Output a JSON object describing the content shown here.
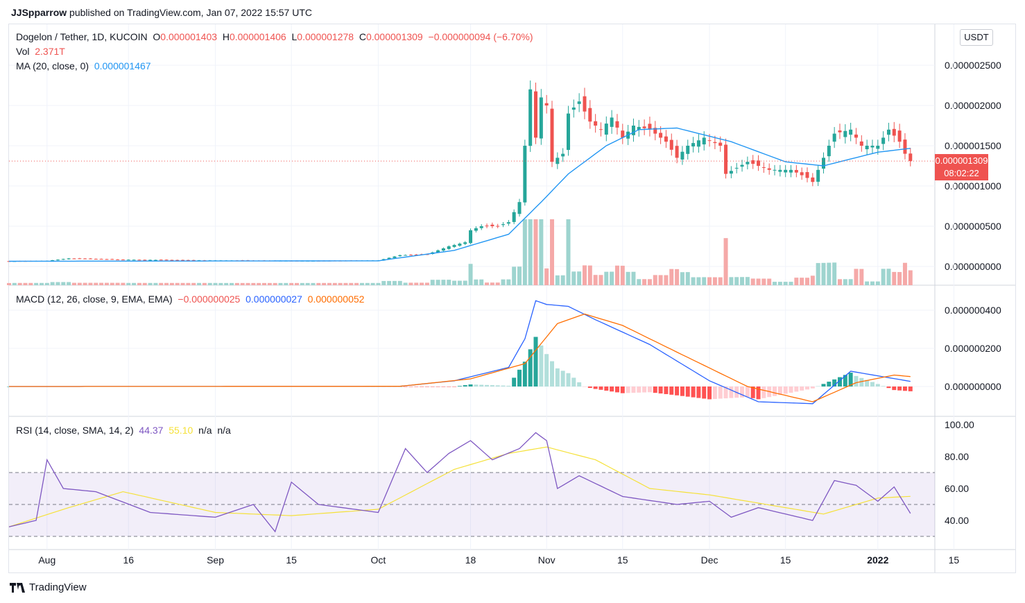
{
  "header": {
    "author": "JJSpparrow",
    "published_text": "published on TradingView.com, Jan 07, 2022 15:57 UTC"
  },
  "symbol": {
    "name": "Dogelon / Tether, 1D, KUCOIN",
    "o_label": "O",
    "o": "0.000001403",
    "h_label": "H",
    "h": "0.000001406",
    "l_label": "L",
    "l": "0.000001278",
    "c_label": "C",
    "c": "0.000001309",
    "change": "−0.000000094 (−6.70%)"
  },
  "vol": {
    "label": "Vol",
    "value": "2.371T"
  },
  "ma": {
    "label": "MA (20, close, 0)",
    "value": "0.000001467"
  },
  "macd": {
    "label": "MACD (12, 26, close, 9, EMA, EMA)",
    "hist": "−0.000000025",
    "macd": "0.000000027",
    "signal": "0.000000052"
  },
  "rsi": {
    "label": "RSI (14, close, SMA, 14, 2)",
    "rsi": "44.37",
    "ma": "55.10",
    "na1": "n/a",
    "na2": "n/a"
  },
  "currency_button": "USDT",
  "last_price": {
    "value": "0.000001309",
    "countdown": "08:02:22"
  },
  "footer": {
    "brand": "TradingView"
  },
  "colors": {
    "up": "#26a69a",
    "down": "#ef5350",
    "ma": "#2196f3",
    "macd": "#2962ff",
    "signal": "#ff6d00",
    "rsi": "#7e57c2",
    "rsi_ma": "#f5e138",
    "vol_up": "#9ed4cf",
    "vol_down": "#f5a9a8"
  },
  "chart_data": [
    {
      "type": "candlestick",
      "title": "Dogelon / Tether, 1D, KUCOIN",
      "y_ticks": [
        "0.000002500",
        "0.000002000",
        "0.000001500",
        "0.000001000",
        "0.000000500",
        "0.000000000"
      ],
      "y_tick_values": [
        2.5e-06,
        2e-06,
        1.5e-06,
        1e-06,
        5e-07,
        0
      ],
      "x_ticks": [
        "Aug",
        "16",
        "Sep",
        "15",
        "Oct",
        "18",
        "Nov",
        "15",
        "Dec",
        "15",
        "2022",
        "15"
      ],
      "x_tick_dates": [
        "2021-08-01",
        "2021-08-16",
        "2021-09-01",
        "2021-09-15",
        "2021-10-01",
        "2021-10-18",
        "2021-11-01",
        "2021-11-15",
        "2021-12-01",
        "2021-12-15",
        "2022-01-01",
        "2022-01-15"
      ],
      "date_range": [
        "2021-07-25",
        "2022-01-07"
      ],
      "close_keypoints": [
        [
          "2021-07-25",
          6.5e-08
        ],
        [
          "2021-08-01",
          7e-08
        ],
        [
          "2021-08-05",
          1e-07
        ],
        [
          "2021-08-15",
          8.5e-08
        ],
        [
          "2021-09-01",
          7.5e-08
        ],
        [
          "2021-09-20",
          7e-08
        ],
        [
          "2021-10-01",
          7.5e-08
        ],
        [
          "2021-10-05",
          1.4e-07
        ],
        [
          "2021-10-10",
          1.5e-07
        ],
        [
          "2021-10-14",
          2.5e-07
        ],
        [
          "2021-10-17",
          3e-07
        ],
        [
          "2021-10-18",
          4.5e-07
        ],
        [
          "2021-10-20",
          5e-07
        ],
        [
          "2021-10-23",
          5e-07
        ],
        [
          "2021-10-25",
          5.5e-07
        ],
        [
          "2021-10-27",
          8e-07
        ],
        [
          "2021-10-28",
          1.5e-06
        ],
        [
          "2021-10-29",
          2.2e-06
        ],
        [
          "2021-10-30",
          1.6e-06
        ],
        [
          "2021-10-31",
          2.1e-06
        ],
        [
          "2021-11-01",
          2e-06
        ],
        [
          "2021-11-02",
          1.3e-06
        ],
        [
          "2021-11-04",
          1.4e-06
        ],
        [
          "2021-11-05",
          1.9e-06
        ],
        [
          "2021-11-07",
          2.05e-06
        ],
        [
          "2021-11-09",
          1.8e-06
        ],
        [
          "2021-11-11",
          1.7e-06
        ],
        [
          "2021-11-13",
          1.85e-06
        ],
        [
          "2021-11-15",
          1.6e-06
        ],
        [
          "2021-11-17",
          1.75e-06
        ],
        [
          "2021-11-20",
          1.7e-06
        ],
        [
          "2021-11-23",
          1.55e-06
        ],
        [
          "2021-11-25",
          1.35e-06
        ],
        [
          "2021-11-27",
          1.5e-06
        ],
        [
          "2021-11-30",
          1.6e-06
        ],
        [
          "2021-12-03",
          1.5e-06
        ],
        [
          "2021-12-04",
          1.15e-06
        ],
        [
          "2021-12-08",
          1.3e-06
        ],
        [
          "2021-12-12",
          1.2e-06
        ],
        [
          "2021-12-16",
          1.2e-06
        ],
        [
          "2021-12-19",
          1.1e-06
        ],
        [
          "2021-12-20",
          1.05e-06
        ],
        [
          "2021-12-22",
          1.35e-06
        ],
        [
          "2021-12-24",
          1.65e-06
        ],
        [
          "2021-12-27",
          1.7e-06
        ],
        [
          "2021-12-29",
          1.5e-06
        ],
        [
          "2022-01-01",
          1.5e-06
        ],
        [
          "2022-01-03",
          1.7e-06
        ],
        [
          "2022-01-05",
          1.55e-06
        ],
        [
          "2022-01-06",
          1.4e-06
        ],
        [
          "2022-01-07",
          1.309e-06
        ]
      ],
      "ma20_keypoints": [
        [
          "2021-07-25",
          6.5e-08
        ],
        [
          "2021-10-01",
          7e-08
        ],
        [
          "2021-10-15",
          2e-07
        ],
        [
          "2021-10-25",
          4e-07
        ],
        [
          "2021-10-31",
          8e-07
        ],
        [
          "2021-11-05",
          1.15e-06
        ],
        [
          "2021-11-12",
          1.5e-06
        ],
        [
          "2021-11-18",
          1.7e-06
        ],
        [
          "2021-11-25",
          1.72e-06
        ],
        [
          "2021-12-05",
          1.55e-06
        ],
        [
          "2021-12-15",
          1.3e-06
        ],
        [
          "2021-12-22",
          1.25e-06
        ],
        [
          "2022-01-01",
          1.42e-06
        ],
        [
          "2022-01-07",
          1.467e-06
        ]
      ],
      "volume_note": "Volume bars shown below price, spike near Oct 29"
    },
    {
      "type": "line",
      "title": "MACD (12, 26, close, 9, EMA, EMA)",
      "y_ticks": [
        "0.000000400",
        "0.000000200",
        "0.000000000"
      ],
      "y_tick_values": [
        4e-07,
        2e-07,
        0
      ],
      "series": [
        {
          "name": "MACD",
          "keypoints": [
            [
              "2021-07-25",
              0
            ],
            [
              "2021-10-05",
              1e-09
            ],
            [
              "2021-10-15",
              3e-08
            ],
            [
              "2021-10-25",
              1e-07
            ],
            [
              "2021-10-28",
              2.5e-07
            ],
            [
              "2021-10-30",
              4.5e-07
            ],
            [
              "2021-11-01",
              4.3e-07
            ],
            [
              "2021-11-05",
              4.2e-07
            ],
            [
              "2021-11-10",
              3.5e-07
            ],
            [
              "2021-11-20",
              2.2e-07
            ],
            [
              "2021-12-01",
              3e-08
            ],
            [
              "2021-12-10",
              -8e-08
            ],
            [
              "2021-12-20",
              -9e-08
            ],
            [
              "2021-12-27",
              8e-08
            ],
            [
              "2022-01-07",
              2.7e-08
            ]
          ]
        },
        {
          "name": "Signal",
          "keypoints": [
            [
              "2021-07-25",
              0
            ],
            [
              "2021-10-05",
              1e-09
            ],
            [
              "2021-10-18",
              4e-08
            ],
            [
              "2021-10-28",
              1.2e-07
            ],
            [
              "2021-11-03",
              3.3e-07
            ],
            [
              "2021-11-08",
              3.8e-07
            ],
            [
              "2021-11-15",
              3.2e-07
            ],
            [
              "2021-11-25",
              1.8e-07
            ],
            [
              "2021-12-08",
              0
            ],
            [
              "2021-12-20",
              -8e-08
            ],
            [
              "2021-12-28",
              2e-08
            ],
            [
              "2022-01-04",
              6e-08
            ],
            [
              "2022-01-07",
              5.2e-08
            ]
          ]
        },
        {
          "name": "Histogram",
          "value": -2.5e-08
        }
      ]
    },
    {
      "type": "line",
      "title": "RSI (14, close, SMA, 14, 2)",
      "y_ticks": [
        "100.00",
        "80.00",
        "60.00",
        "40.00"
      ],
      "y_tick_values": [
        100,
        80,
        60,
        40
      ],
      "bands": [
        70,
        50,
        30
      ],
      "series": [
        {
          "name": "RSI",
          "keypoints": [
            [
              "2021-07-25",
              36
            ],
            [
              "2021-07-30",
              40
            ],
            [
              "2021-08-01",
              78
            ],
            [
              "2021-08-04",
              60
            ],
            [
              "2021-08-10",
              58
            ],
            [
              "2021-08-20",
              45
            ],
            [
              "2021-09-01",
              42
            ],
            [
              "2021-09-08",
              50
            ],
            [
              "2021-09-12",
              33
            ],
            [
              "2021-09-15",
              64
            ],
            [
              "2021-09-20",
              50
            ],
            [
              "2021-10-01",
              45
            ],
            [
              "2021-10-06",
              85
            ],
            [
              "2021-10-10",
              70
            ],
            [
              "2021-10-14",
              82
            ],
            [
              "2021-10-18",
              90
            ],
            [
              "2021-10-22",
              78
            ],
            [
              "2021-10-27",
              85
            ],
            [
              "2021-10-30",
              95
            ],
            [
              "2021-11-01",
              90
            ],
            [
              "2021-11-03",
              60
            ],
            [
              "2021-11-07",
              68
            ],
            [
              "2021-11-15",
              55
            ],
            [
              "2021-11-25",
              50
            ],
            [
              "2021-12-01",
              52
            ],
            [
              "2021-12-05",
              42
            ],
            [
              "2021-12-10",
              48
            ],
            [
              "2021-12-20",
              40
            ],
            [
              "2021-12-24",
              65
            ],
            [
              "2021-12-28",
              62
            ],
            [
              "2022-01-01",
              52
            ],
            [
              "2022-01-04",
              61
            ],
            [
              "2022-01-07",
              44.37
            ]
          ]
        },
        {
          "name": "RSI MA",
          "keypoints": [
            [
              "2021-07-25",
              36
            ],
            [
              "2021-08-05",
              48
            ],
            [
              "2021-08-15",
              58
            ],
            [
              "2021-09-01",
              45
            ],
            [
              "2021-09-15",
              43
            ],
            [
              "2021-10-01",
              47
            ],
            [
              "2021-10-15",
              72
            ],
            [
              "2021-10-25",
              82
            ],
            [
              "2021-11-01",
              86
            ],
            [
              "2021-11-10",
              78
            ],
            [
              "2021-11-20",
              60
            ],
            [
              "2021-12-01",
              56
            ],
            [
              "2021-12-15",
              48
            ],
            [
              "2021-12-22",
              44
            ],
            [
              "2022-01-01",
              54
            ],
            [
              "2022-01-07",
              55.1
            ]
          ]
        }
      ]
    }
  ]
}
